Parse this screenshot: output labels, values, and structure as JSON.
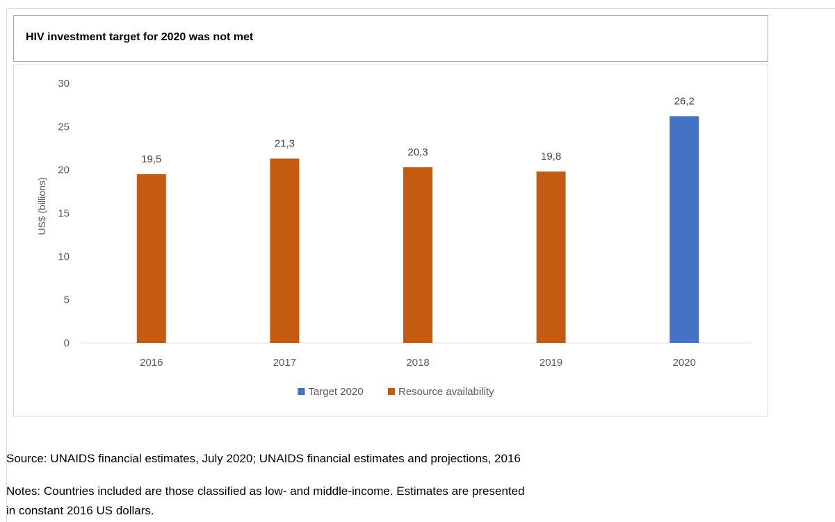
{
  "chart_data": {
    "type": "bar",
    "title": "HIV investment target for 2020 was not met",
    "ylabel": "US$ (billions)",
    "xlabel": "",
    "ylim": [
      0,
      30
    ],
    "yticks": [
      0,
      5,
      10,
      15,
      20,
      25,
      30
    ],
    "ytick_labels": [
      "0",
      "5",
      "10",
      "15",
      "20",
      "25",
      "30"
    ],
    "grid": false,
    "legend_position": "bottom",
    "categories": [
      "2016",
      "2017",
      "2018",
      "2019",
      "2020"
    ],
    "series": [
      {
        "name": "Target 2020",
        "color": "#4472c4",
        "values": [
          null,
          null,
          null,
          null,
          26.2
        ],
        "labels": [
          "",
          "",
          "",
          "",
          "26,2"
        ]
      },
      {
        "name": "Resource availability",
        "color": "#c55a11",
        "values": [
          19.5,
          21.3,
          20.3,
          19.8,
          null
        ],
        "labels": [
          "19,5",
          "21,3",
          "20,3",
          "19,8",
          ""
        ]
      }
    ]
  },
  "footnotes": {
    "source": "Source: UNAIDS financial estimates, July 2020; UNAIDS financial estimates and projections, 2016",
    "notes_line1": "Notes: Countries included are those classified as low- and middle-income. Estimates are presented",
    "notes_line2": "in constant 2016 US dollars."
  }
}
